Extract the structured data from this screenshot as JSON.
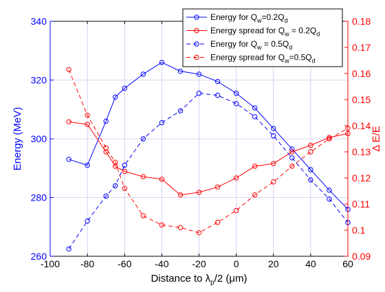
{
  "chart_data": {
    "type": "line",
    "xlabel_parts": [
      "Distance to ",
      "λ",
      "p",
      "/2 (",
      "μ",
      "m)"
    ],
    "ylabel_left": "Energy (MeV)",
    "ylabel_right": "Δ E/E",
    "xlim": [
      -100,
      60
    ],
    "ylim_left": [
      260,
      340
    ],
    "ylim_right": [
      0.09,
      0.18
    ],
    "x_ticks": [
      -100,
      -80,
      -60,
      -40,
      -20,
      0,
      20,
      40,
      60
    ],
    "y_left_ticks": [
      260,
      280,
      300,
      320,
      340
    ],
    "y_right_ticks": [
      0.09,
      0.1,
      0.11,
      0.12,
      0.13,
      0.14,
      0.15,
      0.16,
      0.17,
      0.18
    ],
    "x_tick_labels": [
      "-100",
      "-80",
      "-60",
      "-40",
      "-20",
      "0",
      "20",
      "40",
      "60"
    ],
    "y_left_tick_labels": [
      "260",
      "280",
      "300",
      "320",
      "340"
    ],
    "y_right_tick_labels": [
      "0.09",
      "0.1",
      "0.11",
      "0.12",
      "0.13",
      "0.14",
      "0.15",
      "0.16",
      "0.17",
      "0.18"
    ],
    "grid": true,
    "legend_position": "top-right",
    "colors": {
      "left_axis": "#0000ff",
      "right_axis": "#ff0000",
      "grid": "#c8c8f0"
    },
    "series": [
      {
        "name": "Energy for Q_w=0.2Q_d",
        "legend_parts": [
          "Energy for Q",
          "w",
          "=0.2Q",
          "d"
        ],
        "axis": "left",
        "color": "#0000ff",
        "dash": false,
        "x": [
          -90,
          -80,
          -70,
          -65,
          -60,
          -50,
          -40,
          -30,
          -20,
          -10,
          0,
          10,
          20,
          30,
          40,
          50,
          60
        ],
        "y": [
          293.0,
          291.0,
          306.0,
          314.2,
          317.2,
          322.0,
          326.0,
          323.0,
          322.0,
          319.5,
          315.5,
          310.5,
          303.5,
          296.5,
          289.5,
          282.5,
          276.0
        ]
      },
      {
        "name": "Energy spread for Q_w = 0.2Q_d",
        "legend_parts": [
          "Energy spread for Q",
          "w",
          " = 0.2Q",
          "d"
        ],
        "axis": "right",
        "color": "#ff0000",
        "dash": false,
        "x": [
          -90,
          -80,
          -70,
          -65,
          -60,
          -50,
          -40,
          -30,
          -20,
          -10,
          0,
          10,
          20,
          30,
          40,
          50,
          60
        ],
        "y": [
          0.1415,
          0.1405,
          0.13,
          0.1245,
          0.1225,
          0.1205,
          0.1195,
          0.1135,
          0.1145,
          0.1165,
          0.12,
          0.1245,
          0.1255,
          0.13,
          0.1325,
          0.1355,
          0.137
        ]
      },
      {
        "name": "Energy for Q_w = 0.5Q_d",
        "legend_parts": [
          "Energy for Q",
          "w",
          " = 0.5Q",
          "d"
        ],
        "axis": "left",
        "color": "#0000ff",
        "dash": true,
        "x": [
          -90,
          -80,
          -70,
          -65,
          -60,
          -50,
          -40,
          -30,
          -20,
          -10,
          0,
          10,
          20,
          30,
          40,
          50,
          60
        ],
        "y": [
          262.5,
          272.0,
          280.5,
          284.0,
          291.0,
          300.0,
          305.5,
          309.5,
          315.5,
          314.8,
          312.0,
          307.5,
          301.0,
          293.5,
          286.0,
          279.5,
          271.5
        ]
      },
      {
        "name": "Energy spread for Q_w=0.5Q_d",
        "legend_parts": [
          "Energy spread for Q",
          "w",
          "=0.5Q",
          "d"
        ],
        "axis": "right",
        "color": "#ff0000",
        "dash": true,
        "x": [
          -90,
          -80,
          -70,
          -65,
          -60,
          -50,
          -40,
          -30,
          -20,
          -10,
          0,
          10,
          20,
          30,
          40,
          50,
          60
        ],
        "y": [
          0.1615,
          0.144,
          0.1315,
          0.126,
          0.116,
          0.1055,
          0.102,
          0.101,
          0.099,
          0.103,
          0.1075,
          0.1135,
          0.1185,
          0.1245,
          0.13,
          0.135,
          0.139
        ]
      }
    ]
  }
}
